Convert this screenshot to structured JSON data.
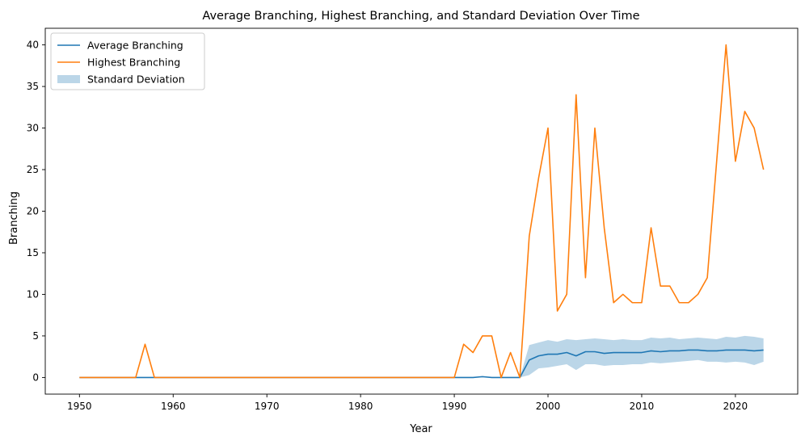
{
  "chart_data": {
    "type": "line",
    "title": "Average Branching, Highest Branching, and Standard Deviation Over Time",
    "xlabel": "Year",
    "ylabel": "Branching",
    "xlim": [
      1946.35,
      2026.65
    ],
    "ylim": [
      -2.0,
      42.0
    ],
    "x_ticks": [
      1950,
      1960,
      1970,
      1980,
      1990,
      2000,
      2010,
      2020
    ],
    "y_ticks": [
      0,
      5,
      10,
      15,
      20,
      25,
      30,
      35,
      40
    ],
    "legend_position": "top-left",
    "grid": false,
    "x": [
      1950,
      1951,
      1952,
      1953,
      1954,
      1955,
      1956,
      1957,
      1958,
      1959,
      1960,
      1961,
      1962,
      1963,
      1964,
      1965,
      1966,
      1967,
      1968,
      1969,
      1970,
      1971,
      1972,
      1973,
      1974,
      1975,
      1976,
      1977,
      1978,
      1979,
      1980,
      1981,
      1982,
      1983,
      1984,
      1985,
      1986,
      1987,
      1988,
      1989,
      1990,
      1991,
      1992,
      1993,
      1994,
      1995,
      1996,
      1997,
      1998,
      1999,
      2000,
      2001,
      2002,
      2003,
      2004,
      2005,
      2006,
      2007,
      2008,
      2009,
      2010,
      2011,
      2012,
      2013,
      2014,
      2015,
      2016,
      2017,
      2018,
      2019,
      2020,
      2021,
      2022,
      2023
    ],
    "series": [
      {
        "name": "Average Branching",
        "color": "#1f77b4",
        "values": [
          0,
          0,
          0,
          0,
          0,
          0,
          0,
          0,
          0,
          0,
          0,
          0,
          0,
          0,
          0,
          0,
          0,
          0,
          0,
          0,
          0,
          0,
          0,
          0,
          0,
          0,
          0,
          0,
          0,
          0,
          0,
          0,
          0,
          0,
          0,
          0,
          0,
          0,
          0,
          0,
          0,
          0,
          0,
          0.1,
          0,
          0,
          0,
          0,
          2.1,
          2.6,
          2.8,
          2.8,
          3.0,
          2.6,
          3.1,
          3.1,
          2.9,
          3.0,
          3.0,
          3.0,
          3.0,
          3.2,
          3.1,
          3.2,
          3.2,
          3.3,
          3.3,
          3.2,
          3.2,
          3.3,
          3.3,
          3.3,
          3.2,
          3.3
        ]
      },
      {
        "name": "Highest Branching",
        "color": "#ff7f0e",
        "values": [
          0,
          0,
          0,
          0,
          0,
          0,
          0,
          4,
          0,
          0,
          0,
          0,
          0,
          0,
          0,
          0,
          0,
          0,
          0,
          0,
          0,
          0,
          0,
          0,
          0,
          0,
          0,
          0,
          0,
          0,
          0,
          0,
          0,
          0,
          0,
          0,
          0,
          0,
          0,
          0,
          0,
          4,
          3,
          5,
          5,
          0,
          3,
          0,
          17,
          24,
          30,
          8,
          10,
          34,
          12,
          30,
          18,
          9,
          10,
          9,
          9,
          18,
          11,
          11,
          9,
          9,
          10,
          12,
          26,
          40,
          26,
          32,
          30,
          25
        ]
      },
      {
        "name": "Standard Deviation",
        "type": "band",
        "color": "#1f77b4",
        "opacity": 0.3,
        "lower": [
          0,
          0,
          0,
          0,
          0,
          0,
          0,
          0,
          0,
          0,
          0,
          0,
          0,
          0,
          0,
          0,
          0,
          0,
          0,
          0,
          0,
          0,
          0,
          0,
          0,
          0,
          0,
          0,
          0,
          0,
          0,
          0,
          0,
          0,
          0,
          0,
          0,
          0,
          0,
          0,
          0,
          0,
          0,
          0,
          0,
          0,
          0,
          0,
          0.3,
          1.1,
          1.2,
          1.4,
          1.6,
          0.9,
          1.6,
          1.6,
          1.4,
          1.5,
          1.5,
          1.6,
          1.6,
          1.8,
          1.7,
          1.8,
          1.9,
          2.0,
          2.1,
          1.9,
          1.9,
          1.8,
          1.9,
          1.8,
          1.5,
          1.9
        ],
        "upper": [
          0,
          0,
          0,
          0,
          0,
          0,
          0,
          0,
          0,
          0,
          0,
          0,
          0,
          0,
          0,
          0,
          0,
          0,
          0,
          0,
          0,
          0,
          0,
          0,
          0,
          0,
          0,
          0,
          0,
          0,
          0,
          0,
          0,
          0,
          0,
          0,
          0,
          0,
          0,
          0,
          0,
          0,
          0,
          0.1,
          0,
          0,
          0,
          0,
          3.9,
          4.2,
          4.5,
          4.3,
          4.6,
          4.5,
          4.6,
          4.7,
          4.6,
          4.5,
          4.6,
          4.5,
          4.5,
          4.8,
          4.7,
          4.8,
          4.6,
          4.7,
          4.8,
          4.7,
          4.6,
          4.9,
          4.8,
          5.0,
          4.9,
          4.7
        ]
      }
    ]
  }
}
